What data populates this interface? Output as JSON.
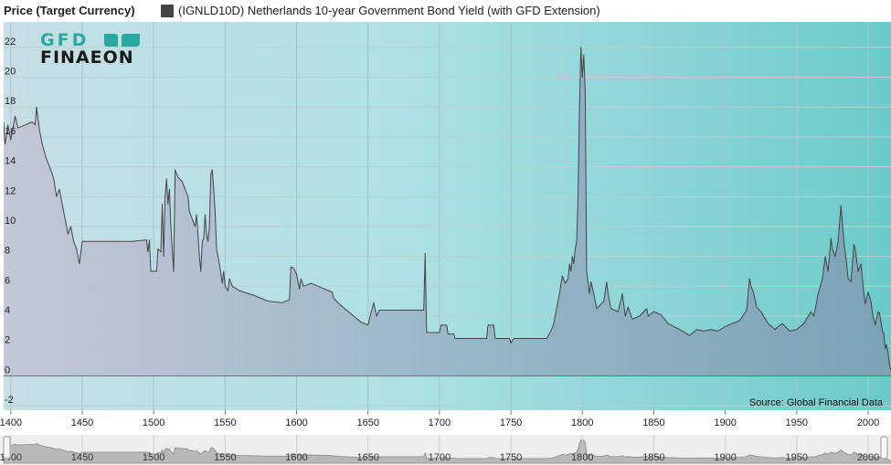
{
  "header": {
    "y_axis_title": "Price (Target Currency)",
    "legend_label": "(IGNLD10D) Netherlands 10-year Government Bond Yield (with GFD Extension)"
  },
  "logo": {
    "line1": "GFD",
    "line2": "FINAEON"
  },
  "source": "Source: Global Financial Data",
  "colors": {
    "series_line": "#444444",
    "area_fill": "#8fa9b9",
    "negative_segment": "#e8642c",
    "bg_left": "#c6dfe4",
    "bg_right": "#6ccaca",
    "logo_teal": "#2aa8a0"
  },
  "chart_data": {
    "type": "area",
    "title": "",
    "xlabel": "",
    "ylabel": "Price (Target Currency)",
    "xlim": [
      1395,
      2016
    ],
    "ylim": [
      -2.3,
      23.7
    ],
    "x_ticks": [
      1400,
      1450,
      1500,
      1550,
      1600,
      1650,
      1700,
      1750,
      1800,
      1850,
      1900,
      1950,
      2000
    ],
    "y_ticks": [
      -2,
      0,
      2,
      4,
      6,
      8,
      10,
      12,
      14,
      16,
      18,
      20,
      22
    ],
    "grid": true,
    "legend": "top",
    "series": [
      {
        "name": "(IGNLD10D) Netherlands 10-year Government Bond Yield (with GFD Extension)",
        "points": [
          [
            1395,
            17.0
          ],
          [
            1396,
            15.5
          ],
          [
            1398,
            16.8
          ],
          [
            1400,
            15.8
          ],
          [
            1403,
            17.4
          ],
          [
            1405,
            16.6
          ],
          [
            1410,
            16.8
          ],
          [
            1415,
            17.0
          ],
          [
            1417,
            16.8
          ],
          [
            1418,
            18.0
          ],
          [
            1420,
            16.5
          ],
          [
            1422,
            15.5
          ],
          [
            1425,
            14.5
          ],
          [
            1428,
            13.8
          ],
          [
            1430,
            13.2
          ],
          [
            1432,
            12.0
          ],
          [
            1434,
            12.5
          ],
          [
            1436,
            11.5
          ],
          [
            1438,
            10.5
          ],
          [
            1440,
            9.5
          ],
          [
            1442,
            10.0
          ],
          [
            1444,
            9.0
          ],
          [
            1446,
            8.5
          ],
          [
            1448,
            7.5
          ],
          [
            1450,
            9.0
          ],
          [
            1460,
            9.0
          ],
          [
            1470,
            9.0
          ],
          [
            1485,
            9.0
          ],
          [
            1495,
            9.1
          ],
          [
            1496,
            8.3
          ],
          [
            1497,
            9.1
          ],
          [
            1498,
            7.0
          ],
          [
            1502,
            7.0
          ],
          [
            1503,
            8.5
          ],
          [
            1505,
            8.3
          ],
          [
            1506,
            11.5
          ],
          [
            1507,
            8.0
          ],
          [
            1508,
            12.0
          ],
          [
            1509,
            13.2
          ],
          [
            1510,
            11.5
          ],
          [
            1511,
            12.5
          ],
          [
            1512,
            10.0
          ],
          [
            1513,
            8.5
          ],
          [
            1514,
            7.0
          ],
          [
            1515,
            13.8
          ],
          [
            1517,
            13.3
          ],
          [
            1520,
            13.0
          ],
          [
            1522,
            12.5
          ],
          [
            1524,
            12.0
          ],
          [
            1525,
            11.0
          ],
          [
            1527,
            10.5
          ],
          [
            1529,
            10.0
          ],
          [
            1530,
            10.8
          ],
          [
            1531,
            9.5
          ],
          [
            1532,
            8.0
          ],
          [
            1533,
            7.0
          ],
          [
            1534,
            9.0
          ],
          [
            1535,
            9.2
          ],
          [
            1536,
            10.8
          ],
          [
            1537,
            9.5
          ],
          [
            1538,
            9.0
          ],
          [
            1539,
            10.0
          ],
          [
            1540,
            13.5
          ],
          [
            1541,
            13.8
          ],
          [
            1542,
            12.5
          ],
          [
            1543,
            11.0
          ],
          [
            1544,
            8.5
          ],
          [
            1546,
            7.5
          ],
          [
            1548,
            6.2
          ],
          [
            1549,
            7.0
          ],
          [
            1550,
            6.0
          ],
          [
            1552,
            5.7
          ],
          [
            1553,
            6.5
          ],
          [
            1555,
            6.0
          ],
          [
            1560,
            5.7
          ],
          [
            1570,
            5.4
          ],
          [
            1580,
            5.0
          ],
          [
            1590,
            4.9
          ],
          [
            1595,
            5.1
          ],
          [
            1596,
            7.3
          ],
          [
            1598,
            7.2
          ],
          [
            1600,
            6.8
          ],
          [
            1602,
            5.8
          ],
          [
            1603,
            6.5
          ],
          [
            1605,
            6.0
          ],
          [
            1610,
            6.2
          ],
          [
            1620,
            5.8
          ],
          [
            1625,
            5.6
          ],
          [
            1626,
            5.2
          ],
          [
            1630,
            4.8
          ],
          [
            1640,
            4.0
          ],
          [
            1645,
            3.6
          ],
          [
            1650,
            3.4
          ],
          [
            1652,
            4.2
          ],
          [
            1654,
            4.9
          ],
          [
            1656,
            4.0
          ],
          [
            1658,
            4.4
          ],
          [
            1665,
            4.4
          ],
          [
            1669,
            4.4
          ],
          [
            1670,
            4.4
          ],
          [
            1675,
            4.4
          ],
          [
            1685,
            4.4
          ],
          [
            1689,
            4.4
          ],
          [
            1690,
            8.2
          ],
          [
            1691,
            2.9
          ],
          [
            1700,
            2.9
          ],
          [
            1701,
            3.4
          ],
          [
            1705,
            3.4
          ],
          [
            1706,
            2.8
          ],
          [
            1710,
            2.8
          ],
          [
            1711,
            2.5
          ],
          [
            1720,
            2.5
          ],
          [
            1725,
            2.5
          ],
          [
            1733,
            2.5
          ],
          [
            1734,
            3.4
          ],
          [
            1738,
            3.4
          ],
          [
            1739,
            2.5
          ],
          [
            1749,
            2.5
          ],
          [
            1750,
            2.2
          ],
          [
            1752,
            2.5
          ],
          [
            1760,
            2.5
          ],
          [
            1770,
            2.5
          ],
          [
            1775,
            2.5
          ],
          [
            1778,
            3.0
          ],
          [
            1780,
            3.5
          ],
          [
            1782,
            4.5
          ],
          [
            1784,
            5.5
          ],
          [
            1786,
            6.7
          ],
          [
            1788,
            6.2
          ],
          [
            1790,
            6.5
          ],
          [
            1791,
            7.5
          ],
          [
            1792,
            7.0
          ],
          [
            1793,
            8.0
          ],
          [
            1794,
            7.5
          ],
          [
            1795,
            8.5
          ],
          [
            1796,
            9.0
          ],
          [
            1797,
            12.0
          ],
          [
            1798,
            18.0
          ],
          [
            1799,
            22.0
          ],
          [
            1800,
            20.0
          ],
          [
            1801,
            21.5
          ],
          [
            1802,
            19.0
          ],
          [
            1803,
            7.0
          ],
          [
            1805,
            5.5
          ],
          [
            1806,
            6.3
          ],
          [
            1808,
            5.5
          ],
          [
            1810,
            4.5
          ],
          [
            1815,
            5.0
          ],
          [
            1817,
            6.3
          ],
          [
            1818,
            5.5
          ],
          [
            1820,
            4.5
          ],
          [
            1825,
            4.3
          ],
          [
            1828,
            5.5
          ],
          [
            1830,
            4.0
          ],
          [
            1832,
            4.6
          ],
          [
            1835,
            3.8
          ],
          [
            1840,
            4.0
          ],
          [
            1845,
            4.5
          ],
          [
            1846,
            4.0
          ],
          [
            1850,
            4.3
          ],
          [
            1855,
            4.1
          ],
          [
            1860,
            3.5
          ],
          [
            1870,
            3.0
          ],
          [
            1875,
            2.7
          ],
          [
            1880,
            3.1
          ],
          [
            1885,
            3.0
          ],
          [
            1890,
            3.1
          ],
          [
            1895,
            3.0
          ],
          [
            1900,
            3.3
          ],
          [
            1905,
            3.5
          ],
          [
            1910,
            3.7
          ],
          [
            1915,
            4.4
          ],
          [
            1917,
            6.5
          ],
          [
            1918,
            6.0
          ],
          [
            1920,
            5.5
          ],
          [
            1922,
            4.6
          ],
          [
            1925,
            4.3
          ],
          [
            1930,
            3.5
          ],
          [
            1935,
            3.1
          ],
          [
            1937,
            3.3
          ],
          [
            1940,
            3.5
          ],
          [
            1945,
            3.0
          ],
          [
            1950,
            3.1
          ],
          [
            1955,
            3.5
          ],
          [
            1960,
            4.3
          ],
          [
            1962,
            4.0
          ],
          [
            1965,
            5.5
          ],
          [
            1968,
            6.5
          ],
          [
            1970,
            8.0
          ],
          [
            1972,
            7.0
          ],
          [
            1974,
            9.2
          ],
          [
            1975,
            8.5
          ],
          [
            1977,
            8.0
          ],
          [
            1979,
            9.0
          ],
          [
            1981,
            11.4
          ],
          [
            1983,
            9.0
          ],
          [
            1985,
            7.5
          ],
          [
            1986,
            6.5
          ],
          [
            1988,
            6.3
          ],
          [
            1990,
            8.8
          ],
          [
            1991,
            8.5
          ],
          [
            1993,
            7.0
          ],
          [
            1995,
            7.5
          ],
          [
            1997,
            5.5
          ],
          [
            1998,
            4.8
          ],
          [
            2000,
            5.6
          ],
          [
            2002,
            5.0
          ],
          [
            2003,
            4.2
          ],
          [
            2005,
            3.4
          ],
          [
            2007,
            4.3
          ],
          [
            2008,
            4.2
          ],
          [
            2010,
            3.0
          ],
          [
            2011,
            2.8
          ],
          [
            2012,
            1.8
          ],
          [
            2013,
            2.1
          ],
          [
            2014,
            1.5
          ],
          [
            2015,
            0.7
          ],
          [
            2016,
            0.4
          ],
          [
            2017,
            0.6
          ],
          [
            2018,
            0.4
          ],
          [
            2019,
            -0.2
          ],
          [
            2020,
            -0.5
          ],
          [
            2021,
            -0.3
          ],
          [
            2022,
            1.0
          ]
        ]
      }
    ],
    "navigator": {
      "x_ticks": [
        1400,
        1450,
        1500,
        1550,
        1600,
        1650,
        1700,
        1750,
        1800,
        1850,
        1900,
        1950,
        2000
      ]
    }
  }
}
